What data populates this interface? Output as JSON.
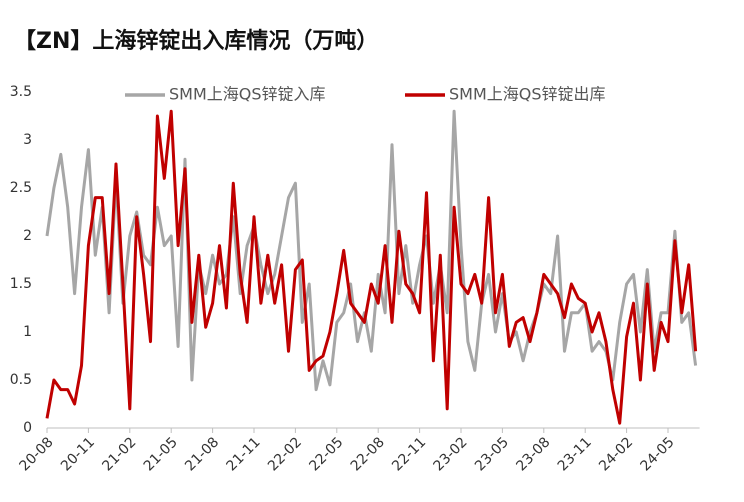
{
  "chart_data": {
    "type": "line",
    "title": "【ZN】上海锌锭出入库情况（万吨）",
    "categories": [
      "20-08",
      null,
      null,
      null,
      null,
      null,
      "20-11",
      null,
      null,
      null,
      null,
      null,
      "21-02",
      null,
      null,
      null,
      null,
      null,
      "21-05",
      null,
      null,
      null,
      null,
      null,
      "21-08",
      null,
      null,
      null,
      null,
      null,
      "21-11",
      null,
      null,
      null,
      null,
      null,
      "22-02",
      null,
      null,
      null,
      null,
      null,
      "22-05",
      null,
      null,
      null,
      null,
      null,
      "22-08",
      null,
      null,
      null,
      null,
      null,
      "22-11",
      null,
      null,
      null,
      null,
      null,
      "23-02",
      null,
      null,
      null,
      null,
      null,
      "23-05",
      null,
      null,
      null,
      null,
      null,
      "23-08",
      null,
      null,
      null,
      null,
      null,
      "23-11",
      null,
      null,
      null,
      null,
      null,
      "24-02",
      null,
      null,
      null,
      null,
      null,
      "24-05",
      null,
      null,
      null,
      null
    ],
    "series": [
      {
        "name": "SMM上海QS锌锭入库",
        "color": "#a6a6a6",
        "values": [
          2.0,
          2.5,
          2.85,
          2.3,
          1.4,
          2.3,
          2.9,
          1.8,
          2.3,
          1.2,
          2.6,
          1.3,
          2.0,
          2.25,
          1.8,
          1.7,
          2.3,
          1.9,
          2.0,
          0.85,
          2.8,
          0.5,
          1.7,
          1.4,
          1.8,
          1.5,
          1.6,
          2.2,
          1.4,
          1.9,
          2.1,
          1.7,
          1.4,
          1.6,
          2.0,
          2.4,
          2.55,
          1.1,
          1.5,
          0.4,
          0.7,
          0.45,
          1.1,
          1.2,
          1.5,
          0.9,
          1.2,
          0.8,
          1.6,
          1.2,
          2.95,
          1.4,
          1.9,
          1.3,
          1.7,
          2.0,
          1.3,
          1.7,
          1.2,
          3.3,
          1.9,
          0.9,
          0.6,
          1.3,
          1.6,
          1.0,
          1.4,
          0.9,
          1.0,
          0.7,
          1.0,
          1.2,
          1.5,
          1.4,
          2.0,
          0.8,
          1.2,
          1.2,
          1.3,
          0.8,
          0.9,
          0.8,
          0.5,
          1.1,
          1.5,
          1.6,
          1.0,
          1.65,
          0.8,
          1.2,
          1.2,
          2.05,
          1.1,
          1.2,
          0.65
        ]
      },
      {
        "name": "SMM上海QS锌锭出库",
        "color": "#c00000",
        "values": [
          0.1,
          0.5,
          0.4,
          0.4,
          0.25,
          0.65,
          1.9,
          2.4,
          2.4,
          1.4,
          2.75,
          1.5,
          0.2,
          2.2,
          1.6,
          0.9,
          3.25,
          2.6,
          3.3,
          1.9,
          2.7,
          1.1,
          1.8,
          1.05,
          1.3,
          1.9,
          1.25,
          2.55,
          1.6,
          1.1,
          2.2,
          1.3,
          1.8,
          1.3,
          1.7,
          0.8,
          1.65,
          1.75,
          0.6,
          0.7,
          0.75,
          1.0,
          1.4,
          1.85,
          1.3,
          1.2,
          1.1,
          1.5,
          1.3,
          1.9,
          1.1,
          2.05,
          1.5,
          1.4,
          1.2,
          2.45,
          0.7,
          1.8,
          0.2,
          2.3,
          1.5,
          1.4,
          1.6,
          1.3,
          2.4,
          1.2,
          1.6,
          0.85,
          1.1,
          1.15,
          0.9,
          1.2,
          1.6,
          1.5,
          1.4,
          1.15,
          1.5,
          1.35,
          1.3,
          1.0,
          1.2,
          0.9,
          0.4,
          0.05,
          0.95,
          1.3,
          0.5,
          1.5,
          0.6,
          1.1,
          0.9,
          1.95,
          1.2,
          1.7,
          0.8
        ]
      }
    ],
    "ylim": [
      0,
      3.5
    ],
    "yticks": [
      0,
      0.5,
      1,
      1.5,
      2,
      2.5,
      3,
      3.5
    ]
  }
}
